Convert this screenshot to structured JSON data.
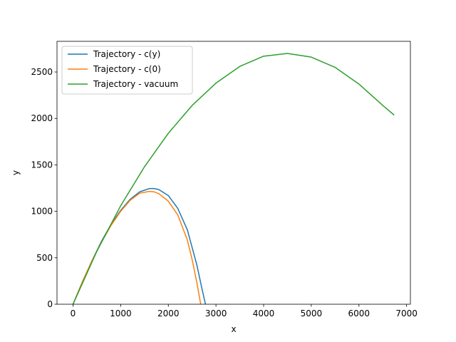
{
  "chart_data": {
    "type": "line",
    "title": "",
    "xlabel": "x",
    "ylabel": "y",
    "xlim": [
      -336,
      7080
    ],
    "ylim": [
      0,
      2830
    ],
    "xticks": [
      0,
      1000,
      2000,
      3000,
      4000,
      5000,
      6000,
      7000
    ],
    "xtick_labels": [
      "0",
      "1000",
      "2000",
      "3000",
      "4000",
      "5000",
      "6000",
      "7000"
    ],
    "yticks": [
      0,
      500,
      1000,
      1500,
      2000,
      2500
    ],
    "ytick_labels": [
      "0",
      "500",
      "1000",
      "1500",
      "2000",
      "2500"
    ],
    "grid": false,
    "legend_position": "top-left",
    "series": [
      {
        "name": "Trajectory - c(y)",
        "color": "#1f77b4",
        "x": [
          0,
          200,
          400,
          600,
          800,
          1000,
          1200,
          1400,
          1600,
          1700,
          1800,
          2000,
          2200,
          2400,
          2600,
          2700,
          2780
        ],
        "y": [
          0,
          245,
          470,
          680,
          860,
          1010,
          1130,
          1210,
          1245,
          1245,
          1235,
          1170,
          1030,
          800,
          420,
          180,
          0
        ]
      },
      {
        "name": "Trajectory - c(0)",
        "color": "#ff7f0e",
        "x": [
          0,
          200,
          400,
          600,
          800,
          1000,
          1200,
          1400,
          1600,
          1700,
          1800,
          2000,
          2200,
          2400,
          2500,
          2600,
          2680
        ],
        "y": [
          0,
          245,
          470,
          670,
          850,
          1000,
          1120,
          1195,
          1215,
          1210,
          1190,
          1110,
          960,
          690,
          480,
          230,
          0
        ]
      },
      {
        "name": "Trajectory - vacuum",
        "color": "#2ca02c",
        "x": [
          0,
          500,
          1000,
          1500,
          2000,
          2500,
          3000,
          3500,
          4000,
          4500,
          5000,
          5500,
          6000,
          6500,
          6730
        ],
        "y": [
          0,
          570,
          1060,
          1480,
          1840,
          2140,
          2380,
          2560,
          2670,
          2700,
          2660,
          2550,
          2370,
          2140,
          2040
        ]
      }
    ]
  }
}
